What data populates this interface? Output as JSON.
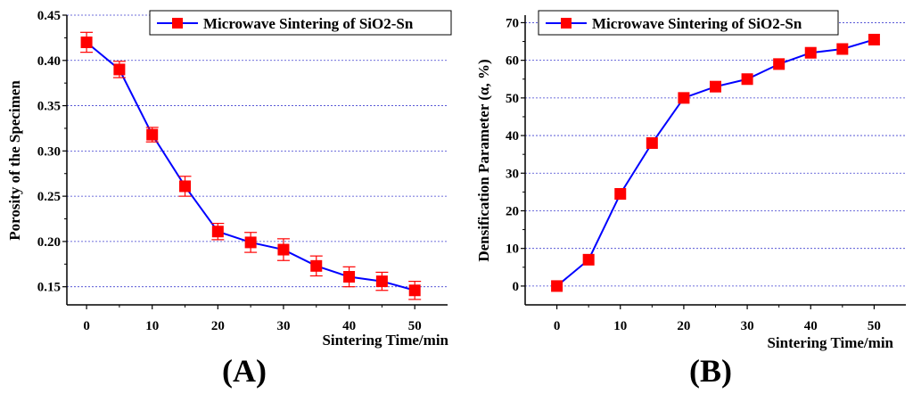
{
  "chart_data": [
    {
      "type": "line",
      "panel_label": "(A)",
      "xlabel": "Sintering Time/min",
      "ylabel": "Porosity of the Specimen",
      "xlim": [
        -3,
        55
      ],
      "ylim": [
        0.13,
        0.45
      ],
      "xticks": [
        0,
        10,
        20,
        30,
        40,
        50
      ],
      "yticks": [
        0.15,
        0.2,
        0.25,
        0.3,
        0.35,
        0.4,
        0.45
      ],
      "ytick_labels": [
        "0.15",
        "0.20",
        "0.25",
        "0.30",
        "0.35",
        "0.40",
        "0.45"
      ],
      "grid": "horizontal-dotted",
      "legend_position": "top-right",
      "line_color": "#0000ff",
      "marker_color": "#ff0000",
      "series": [
        {
          "name": "Microwave Sintering of SiO2-Sn",
          "x": [
            0,
            5,
            10,
            15,
            20,
            25,
            30,
            35,
            40,
            45,
            50
          ],
          "y": [
            0.42,
            0.39,
            0.318,
            0.261,
            0.211,
            0.199,
            0.191,
            0.173,
            0.161,
            0.156,
            0.146
          ],
          "error": [
            0.011,
            0.009,
            0.008,
            0.011,
            0.009,
            0.011,
            0.012,
            0.011,
            0.011,
            0.01,
            0.01
          ]
        }
      ]
    },
    {
      "type": "line",
      "panel_label": "(B)",
      "xlabel": "Sintering Time/min",
      "ylabel": "Densification Parameter (α, %)",
      "xlim": [
        -5,
        55
      ],
      "ylim": [
        -5,
        72
      ],
      "xticks": [
        0,
        10,
        20,
        30,
        40,
        50
      ],
      "yticks": [
        0,
        10,
        20,
        30,
        40,
        50,
        60,
        70
      ],
      "ytick_labels": [
        "0",
        "10",
        "20",
        "30",
        "40",
        "50",
        "60",
        "70"
      ],
      "grid": "horizontal-dotted",
      "legend_position": "top-left",
      "line_color": "#0000ff",
      "marker_color": "#ff0000",
      "series": [
        {
          "name": "Microwave Sintering of SiO2-Sn",
          "x": [
            0,
            5,
            10,
            15,
            20,
            25,
            30,
            35,
            40,
            45,
            50
          ],
          "y": [
            0,
            7,
            24.5,
            38,
            50,
            53,
            55,
            59,
            62,
            63,
            65.5
          ]
        }
      ]
    }
  ]
}
